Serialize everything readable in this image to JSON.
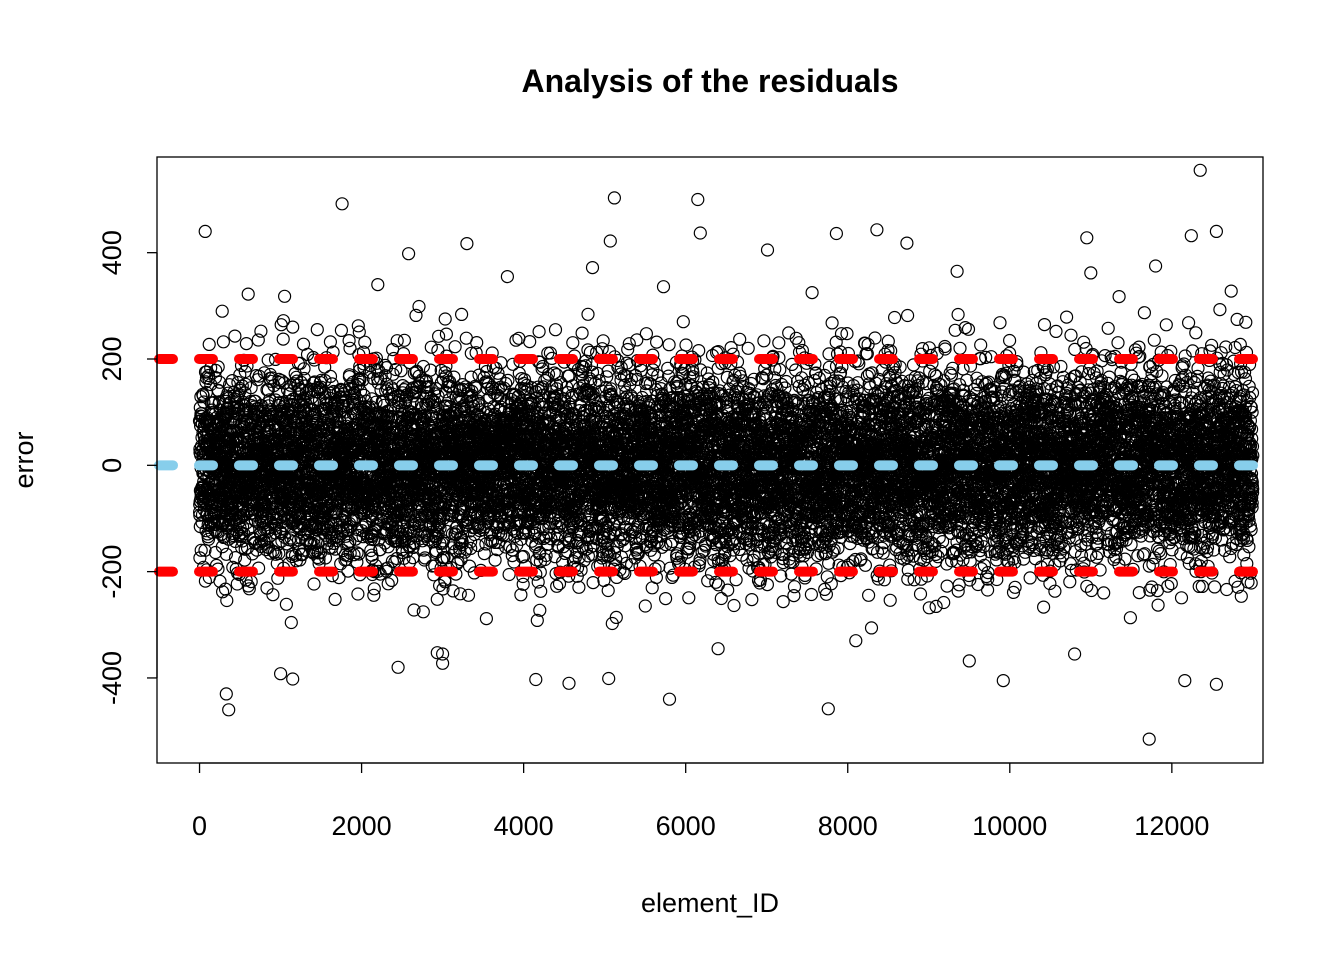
{
  "chart_data": {
    "type": "scatter",
    "title": "Analysis of the residuals",
    "xlabel": "element_ID",
    "ylabel": "error",
    "xlim": [
      -525,
      13125
    ],
    "ylim": [
      -560,
      580
    ],
    "x_ticks": [
      0,
      2000,
      4000,
      6000,
      8000,
      10000,
      12000
    ],
    "x_tick_labels": [
      "0",
      "2000",
      "4000",
      "6000",
      "8000",
      "10000",
      "12000"
    ],
    "y_ticks": [
      -400,
      -200,
      0,
      200,
      400
    ],
    "y_tick_labels": [
      "-400",
      "-200",
      "0",
      "200",
      "400"
    ],
    "grid": false,
    "marker": "open-circle",
    "n_points_approx": 13000,
    "residual_sd_approx": 90,
    "reference_lines": [
      {
        "y": 200,
        "color": "#ff0000",
        "style": "dashed"
      },
      {
        "y": 0,
        "color": "#87ceeb",
        "style": "dashed"
      },
      {
        "y": -200,
        "color": "#ff0000",
        "style": "dashed"
      }
    ],
    "outliers": [
      [
        70,
        440
      ],
      [
        1760,
        492
      ],
      [
        5120,
        503
      ],
      [
        6150,
        500
      ],
      [
        12350,
        555
      ],
      [
        12550,
        440
      ],
      [
        8360,
        443
      ],
      [
        3300,
        417
      ],
      [
        10950,
        428
      ],
      [
        2580,
        398
      ],
      [
        7010,
        405
      ],
      [
        6180,
        437
      ],
      [
        8730,
        418
      ],
      [
        7860,
        436
      ],
      [
        12240,
        432
      ],
      [
        5070,
        422
      ],
      [
        600,
        322
      ],
      [
        1050,
        318
      ],
      [
        2200,
        340
      ],
      [
        3800,
        355
      ],
      [
        4850,
        372
      ],
      [
        7560,
        325
      ],
      [
        9350,
        365
      ],
      [
        11000,
        362
      ],
      [
        11800,
        375
      ],
      [
        330,
        -430
      ],
      [
        360,
        -460
      ],
      [
        1000,
        -392
      ],
      [
        1150,
        -402
      ],
      [
        2450,
        -380
      ],
      [
        4150,
        -403
      ],
      [
        4560,
        -410
      ],
      [
        5050,
        -401
      ],
      [
        5800,
        -440
      ],
      [
        7760,
        -458
      ],
      [
        9920,
        -405
      ],
      [
        11720,
        -515
      ],
      [
        12160,
        -405
      ],
      [
        12550,
        -412
      ],
      [
        8100,
        -330
      ],
      [
        9500,
        -368
      ],
      [
        10800,
        -355
      ],
      [
        3000,
        -355
      ],
      [
        6400,
        -345
      ]
    ]
  }
}
